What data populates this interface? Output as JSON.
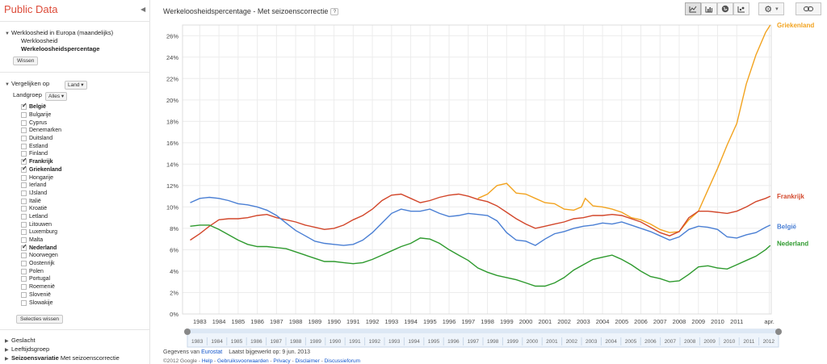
{
  "brand": "Public Data",
  "sidebar": {
    "dataset": {
      "title": "Werkloosheid in Europa (maandelijks)",
      "metric": "Werkloosheid",
      "selected": "Werkeloosheidspercentage",
      "clear_button": "Wissen"
    },
    "compare": {
      "label": "Vergelijken op",
      "value": "Land"
    },
    "group": {
      "label": "Landgroep",
      "value": "Alles"
    },
    "countries": [
      {
        "name": "België",
        "checked": true
      },
      {
        "name": "Bulgarije",
        "checked": false
      },
      {
        "name": "Cyprus",
        "checked": false
      },
      {
        "name": "Denemarken",
        "checked": false
      },
      {
        "name": "Duitsland",
        "checked": false
      },
      {
        "name": "Estland",
        "checked": false
      },
      {
        "name": "Finland",
        "checked": false
      },
      {
        "name": "Frankrijk",
        "checked": true
      },
      {
        "name": "Griekenland",
        "checked": true
      },
      {
        "name": "Hongarije",
        "checked": false
      },
      {
        "name": "Ierland",
        "checked": false
      },
      {
        "name": "IJsland",
        "checked": false
      },
      {
        "name": "Italië",
        "checked": false
      },
      {
        "name": "Kroatië",
        "checked": false
      },
      {
        "name": "Letland",
        "checked": false
      },
      {
        "name": "Litouwen",
        "checked": false
      },
      {
        "name": "Luxemburg",
        "checked": false
      },
      {
        "name": "Malta",
        "checked": false
      },
      {
        "name": "Nederland",
        "checked": true
      },
      {
        "name": "Noorwegen",
        "checked": false
      },
      {
        "name": "Oostenrijk",
        "checked": false
      },
      {
        "name": "Polen",
        "checked": false
      },
      {
        "name": "Portugal",
        "checked": false
      },
      {
        "name": "Roemenië",
        "checked": false
      },
      {
        "name": "Slovenië",
        "checked": false
      },
      {
        "name": "Slowakije",
        "checked": false
      }
    ],
    "clear_selection_button": "Selecties wissen",
    "filters": [
      {
        "label": "Geslacht",
        "value": ""
      },
      {
        "label": "Leeftijdsgroep",
        "value": ""
      },
      {
        "label": "Seizoensvariatie",
        "value": "Met seizoenscorrectie"
      }
    ]
  },
  "header": {
    "title": "Werkeloosheidspercentage - Met seizoenscorrectie",
    "help": "?"
  },
  "toolbar": {
    "views": [
      "line-chart-icon",
      "bar-chart-icon",
      "map-icon",
      "bubble-chart-icon"
    ],
    "settings": "gear-icon",
    "link": "link-icon"
  },
  "colors": {
    "Belgie": "#4a7fd4",
    "Frankrijk": "#d2462a",
    "Griekenland": "#f2a31f",
    "Nederland": "#2e9a2e"
  },
  "chart_data": {
    "type": "line",
    "y_ticks": [
      "0%",
      "2%",
      "4%",
      "6%",
      "8%",
      "10%",
      "12%",
      "14%",
      "16%",
      "18%",
      "20%",
      "22%",
      "24%",
      "26%"
    ],
    "x_ticks": [
      "1983",
      "1984",
      "1985",
      "1986",
      "1987",
      "1988",
      "1989",
      "1990",
      "1991",
      "1992",
      "1993",
      "1994",
      "1995",
      "1996",
      "1997",
      "1998",
      "1999",
      "2000",
      "2001",
      "2002",
      "2003",
      "2004",
      "2005",
      "2006",
      "2007",
      "2008",
      "2009",
      "2010",
      "2011",
      "apr."
    ],
    "ylim": [
      0,
      27
    ],
    "xlim": [
      1982.6,
      2013.3
    ],
    "series": [
      {
        "name": "Griekenland",
        "color": "#f2a31f",
        "points": [
          [
            1998,
            10.8
          ],
          [
            1998.5,
            11.2
          ],
          [
            1999,
            12.0
          ],
          [
            1999.5,
            12.2
          ],
          [
            2000,
            11.3
          ],
          [
            2000.5,
            11.2
          ],
          [
            2001,
            10.8
          ],
          [
            2001.5,
            10.4
          ],
          [
            2002,
            10.3
          ],
          [
            2002.5,
            9.8
          ],
          [
            2003,
            9.7
          ],
          [
            2003.4,
            10.0
          ],
          [
            2003.6,
            10.8
          ],
          [
            2004,
            10.1
          ],
          [
            2004.5,
            10.0
          ],
          [
            2005,
            9.8
          ],
          [
            2005.5,
            9.5
          ],
          [
            2006,
            9.0
          ],
          [
            2006.5,
            8.8
          ],
          [
            2007,
            8.4
          ],
          [
            2007.5,
            7.9
          ],
          [
            2008,
            7.6
          ],
          [
            2008.5,
            7.7
          ],
          [
            2009,
            8.8
          ],
          [
            2009.5,
            9.6
          ],
          [
            2010,
            11.6
          ],
          [
            2010.5,
            13.6
          ],
          [
            2011,
            15.8
          ],
          [
            2011.5,
            17.8
          ],
          [
            2012,
            21.5
          ],
          [
            2012.5,
            24.2
          ],
          [
            2013,
            26.3
          ],
          [
            2013.25,
            27.0
          ]
        ]
      },
      {
        "name": "Frankrijk",
        "color": "#d2462a",
        "points": [
          [
            1983,
            6.9
          ],
          [
            1983.5,
            7.5
          ],
          [
            1984,
            8.2
          ],
          [
            1984.5,
            8.8
          ],
          [
            1985,
            8.9
          ],
          [
            1985.5,
            8.9
          ],
          [
            1986,
            9.0
          ],
          [
            1986.5,
            9.2
          ],
          [
            1987,
            9.3
          ],
          [
            1987.5,
            9.0
          ],
          [
            1988,
            8.8
          ],
          [
            1988.5,
            8.6
          ],
          [
            1989,
            8.3
          ],
          [
            1989.5,
            8.1
          ],
          [
            1990,
            7.9
          ],
          [
            1990.5,
            8.0
          ],
          [
            1991,
            8.3
          ],
          [
            1991.5,
            8.8
          ],
          [
            1992,
            9.2
          ],
          [
            1992.5,
            9.8
          ],
          [
            1993,
            10.6
          ],
          [
            1993.5,
            11.1
          ],
          [
            1994,
            11.2
          ],
          [
            1994.5,
            10.8
          ],
          [
            1995,
            10.4
          ],
          [
            1995.5,
            10.6
          ],
          [
            1996,
            10.9
          ],
          [
            1996.5,
            11.1
          ],
          [
            1997,
            11.2
          ],
          [
            1997.5,
            11.0
          ],
          [
            1998,
            10.7
          ],
          [
            1998.5,
            10.5
          ],
          [
            1999,
            10.1
          ],
          [
            1999.5,
            9.5
          ],
          [
            2000,
            8.9
          ],
          [
            2000.5,
            8.4
          ],
          [
            2001,
            8.0
          ],
          [
            2001.5,
            8.2
          ],
          [
            2002,
            8.4
          ],
          [
            2002.5,
            8.6
          ],
          [
            2003,
            8.9
          ],
          [
            2003.5,
            9.0
          ],
          [
            2004,
            9.2
          ],
          [
            2004.5,
            9.2
          ],
          [
            2005,
            9.3
          ],
          [
            2005.5,
            9.2
          ],
          [
            2006,
            8.9
          ],
          [
            2006.5,
            8.6
          ],
          [
            2007,
            8.1
          ],
          [
            2007.5,
            7.6
          ],
          [
            2008,
            7.3
          ],
          [
            2008.5,
            7.7
          ],
          [
            2009,
            9.0
          ],
          [
            2009.5,
            9.6
          ],
          [
            2010,
            9.6
          ],
          [
            2010.5,
            9.5
          ],
          [
            2011,
            9.4
          ],
          [
            2011.5,
            9.6
          ],
          [
            2012,
            10.0
          ],
          [
            2012.5,
            10.5
          ],
          [
            2013,
            10.8
          ],
          [
            2013.25,
            11.0
          ]
        ]
      },
      {
        "name": "België",
        "color": "#4a7fd4",
        "points": [
          [
            1983,
            10.4
          ],
          [
            1983.5,
            10.8
          ],
          [
            1984,
            10.9
          ],
          [
            1984.5,
            10.8
          ],
          [
            1985,
            10.6
          ],
          [
            1985.5,
            10.3
          ],
          [
            1986,
            10.2
          ],
          [
            1986.5,
            10.0
          ],
          [
            1987,
            9.7
          ],
          [
            1987.5,
            9.2
          ],
          [
            1988,
            8.5
          ],
          [
            1988.5,
            7.8
          ],
          [
            1989,
            7.3
          ],
          [
            1989.5,
            6.8
          ],
          [
            1990,
            6.6
          ],
          [
            1990.5,
            6.5
          ],
          [
            1991,
            6.4
          ],
          [
            1991.5,
            6.5
          ],
          [
            1992,
            6.9
          ],
          [
            1992.5,
            7.6
          ],
          [
            1993,
            8.5
          ],
          [
            1993.5,
            9.4
          ],
          [
            1994,
            9.8
          ],
          [
            1994.5,
            9.6
          ],
          [
            1995,
            9.6
          ],
          [
            1995.5,
            9.8
          ],
          [
            1996,
            9.4
          ],
          [
            1996.5,
            9.1
          ],
          [
            1997,
            9.2
          ],
          [
            1997.5,
            9.4
          ],
          [
            1998,
            9.3
          ],
          [
            1998.5,
            9.2
          ],
          [
            1999,
            8.7
          ],
          [
            1999.5,
            7.6
          ],
          [
            2000,
            6.9
          ],
          [
            2000.5,
            6.8
          ],
          [
            2001,
            6.4
          ],
          [
            2001.5,
            7.0
          ],
          [
            2002,
            7.5
          ],
          [
            2002.5,
            7.7
          ],
          [
            2003,
            8.0
          ],
          [
            2003.5,
            8.2
          ],
          [
            2004,
            8.3
          ],
          [
            2004.5,
            8.5
          ],
          [
            2005,
            8.4
          ],
          [
            2005.5,
            8.6
          ],
          [
            2006,
            8.3
          ],
          [
            2006.5,
            8.0
          ],
          [
            2007,
            7.7
          ],
          [
            2007.5,
            7.3
          ],
          [
            2008,
            6.9
          ],
          [
            2008.5,
            7.2
          ],
          [
            2009,
            7.9
          ],
          [
            2009.5,
            8.2
          ],
          [
            2010,
            8.1
          ],
          [
            2010.5,
            7.9
          ],
          [
            2011,
            7.2
          ],
          [
            2011.5,
            7.1
          ],
          [
            2012,
            7.4
          ],
          [
            2012.5,
            7.6
          ],
          [
            2013,
            8.1
          ],
          [
            2013.25,
            8.3
          ]
        ]
      },
      {
        "name": "Nederland",
        "color": "#2e9a2e",
        "points": [
          [
            1983,
            8.2
          ],
          [
            1983.5,
            8.3
          ],
          [
            1984,
            8.3
          ],
          [
            1984.5,
            7.9
          ],
          [
            1985,
            7.4
          ],
          [
            1985.5,
            6.9
          ],
          [
            1986,
            6.5
          ],
          [
            1986.5,
            6.3
          ],
          [
            1987,
            6.3
          ],
          [
            1987.5,
            6.2
          ],
          [
            1988,
            6.1
          ],
          [
            1988.5,
            5.8
          ],
          [
            1989,
            5.5
          ],
          [
            1989.5,
            5.2
          ],
          [
            1990,
            4.9
          ],
          [
            1990.5,
            4.9
          ],
          [
            1991,
            4.8
          ],
          [
            1991.5,
            4.7
          ],
          [
            1992,
            4.8
          ],
          [
            1992.5,
            5.1
          ],
          [
            1993,
            5.5
          ],
          [
            1993.5,
            5.9
          ],
          [
            1994,
            6.3
          ],
          [
            1994.5,
            6.6
          ],
          [
            1995,
            7.1
          ],
          [
            1995.5,
            7.0
          ],
          [
            1996,
            6.6
          ],
          [
            1996.5,
            6.0
          ],
          [
            1997,
            5.5
          ],
          [
            1997.5,
            5.0
          ],
          [
            1998,
            4.3
          ],
          [
            1998.5,
            3.9
          ],
          [
            1999,
            3.6
          ],
          [
            1999.5,
            3.4
          ],
          [
            2000,
            3.2
          ],
          [
            2000.5,
            2.9
          ],
          [
            2001,
            2.6
          ],
          [
            2001.5,
            2.6
          ],
          [
            2002,
            2.9
          ],
          [
            2002.5,
            3.4
          ],
          [
            2003,
            4.1
          ],
          [
            2003.5,
            4.6
          ],
          [
            2004,
            5.1
          ],
          [
            2004.5,
            5.3
          ],
          [
            2005,
            5.5
          ],
          [
            2005.5,
            5.1
          ],
          [
            2006,
            4.6
          ],
          [
            2006.5,
            4.0
          ],
          [
            2007,
            3.5
          ],
          [
            2007.5,
            3.3
          ],
          [
            2008,
            3.0
          ],
          [
            2008.5,
            3.1
          ],
          [
            2009,
            3.7
          ],
          [
            2009.5,
            4.4
          ],
          [
            2010,
            4.5
          ],
          [
            2010.5,
            4.3
          ],
          [
            2011,
            4.2
          ],
          [
            2011.5,
            4.6
          ],
          [
            2012,
            5.0
          ],
          [
            2012.5,
            5.4
          ],
          [
            2013,
            6.0
          ],
          [
            2013.25,
            6.4
          ]
        ]
      }
    ]
  },
  "timeline": {
    "labels": [
      "1983",
      "1984",
      "1985",
      "1986",
      "1987",
      "1988",
      "1989",
      "1990",
      "1991",
      "1992",
      "1993",
      "1994",
      "1995",
      "1996",
      "1997",
      "1998",
      "1999",
      "2000",
      "2001",
      "2002",
      "2003",
      "2004",
      "2005",
      "2006",
      "2007",
      "2008",
      "2009",
      "2010",
      "2011",
      "2012"
    ]
  },
  "footer": {
    "source_prefix": "Gegevens van",
    "source_link": "Eurostat",
    "updated": "Laatst bijgewerkt op: 9 jun. 2013",
    "copyright": "©2012 Google -",
    "links": [
      "Help",
      "Gebruiksvoorwaarden",
      "Privacy",
      "Disclaimer",
      "Discussieforum"
    ]
  }
}
